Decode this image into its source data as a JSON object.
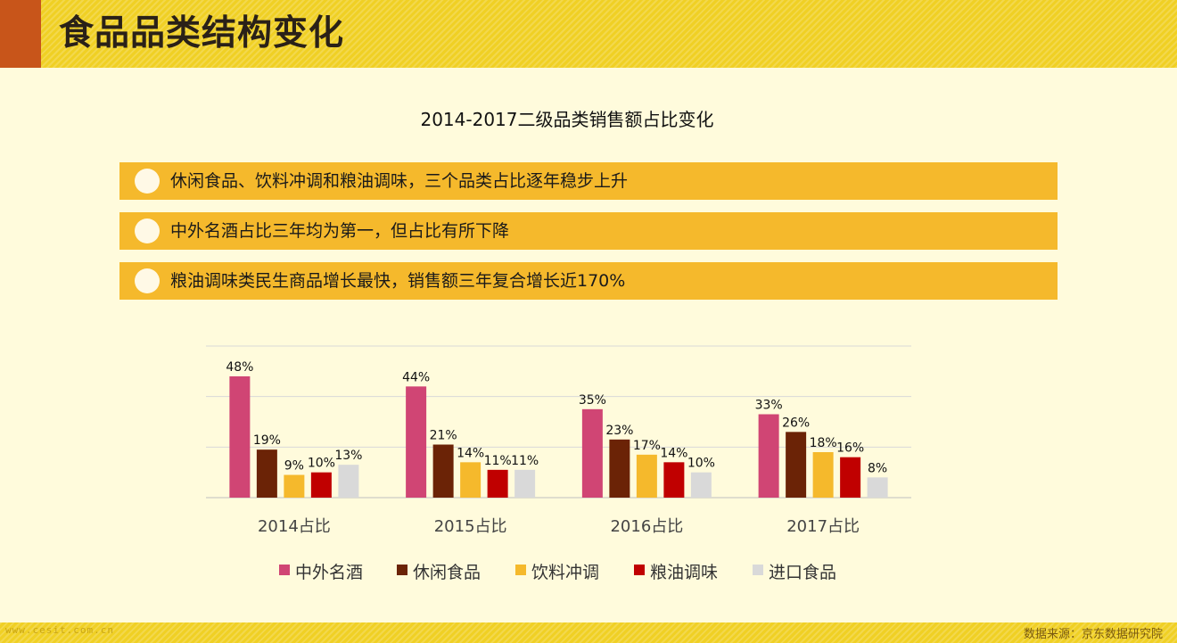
{
  "header": {
    "title": "食品品类结构变化"
  },
  "subtitle": "2014-2017二级品类销售额占比变化",
  "notes": [
    "休闲食品、饮料冲调和粮油调味，三个品类占比逐年稳步上升",
    "中外名酒占比三年均为第一，但占比有所下降",
    "粮油调味类民生商品增长最快，销售额三年复合增长近170%"
  ],
  "footer": {
    "watermark": "www.cesit.com.cn",
    "source": "数据来源：京东数据研究院"
  },
  "colors": {
    "中外名酒": "#d04574",
    "休闲食品": "#6b2306",
    "饮料冲调": "#f5b92c",
    "粮油调味": "#c00000",
    "进口食品": "#d9d9d9"
  },
  "chart_data": {
    "type": "bar",
    "title": "2014-2017二级品类销售额占比变化",
    "categories": [
      "2014占比",
      "2015占比",
      "2016占比",
      "2017占比"
    ],
    "series": [
      {
        "name": "中外名酒",
        "values": [
          48,
          44,
          35,
          33
        ],
        "labels": [
          "48%",
          "44%",
          "35%",
          "33%"
        ]
      },
      {
        "name": "休闲食品",
        "values": [
          19,
          21,
          23,
          26
        ],
        "labels": [
          "19%",
          "21%",
          "23%",
          "26%"
        ]
      },
      {
        "name": "饮料冲调",
        "values": [
          9,
          14,
          17,
          18
        ],
        "labels": [
          "9%",
          "14%",
          "17%",
          "18%"
        ]
      },
      {
        "name": "粮油调味",
        "values": [
          10,
          11,
          14,
          16
        ],
        "labels": [
          "10%",
          "11%",
          "14%",
          "16%"
        ]
      },
      {
        "name": "进口食品",
        "values": [
          13,
          11,
          10,
          8
        ],
        "labels": [
          "13%",
          "11%",
          "10%",
          "8%"
        ]
      }
    ],
    "ylim": [
      0,
      60
    ],
    "grid": true,
    "legend": "bottom"
  }
}
